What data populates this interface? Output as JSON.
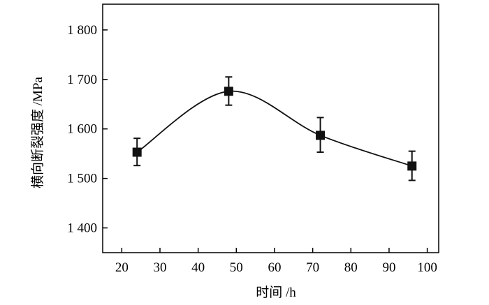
{
  "chart_data": {
    "type": "scatter",
    "title": "",
    "xlabel": "时间 /h",
    "ylabel": "横向断裂强度 /MPa",
    "xlim": [
      15,
      103
    ],
    "ylim": [
      1350,
      1852
    ],
    "x_ticks": [
      20,
      30,
      40,
      50,
      60,
      70,
      80,
      90,
      100
    ],
    "x_tick_labels": [
      "20",
      "30",
      "40",
      "50",
      "60",
      "70",
      "80",
      "90",
      "100"
    ],
    "y_ticks": [
      1400,
      1500,
      1600,
      1700,
      1800
    ],
    "y_tick_labels": [
      "1 400",
      "1 500",
      "1 600",
      "1 700",
      "1 800"
    ],
    "grid": false,
    "series": [
      {
        "marker": "square",
        "color": "#111111",
        "smooth_curve": true,
        "points": [
          {
            "x": 24,
            "y": 1553,
            "err_low": 1526,
            "err_high": 1581
          },
          {
            "x": 48,
            "y": 1676,
            "err_low": 1648,
            "err_high": 1705
          },
          {
            "x": 72,
            "y": 1587,
            "err_low": 1553,
            "err_high": 1623
          },
          {
            "x": 96,
            "y": 1525,
            "err_low": 1496,
            "err_high": 1555
          }
        ]
      }
    ]
  }
}
